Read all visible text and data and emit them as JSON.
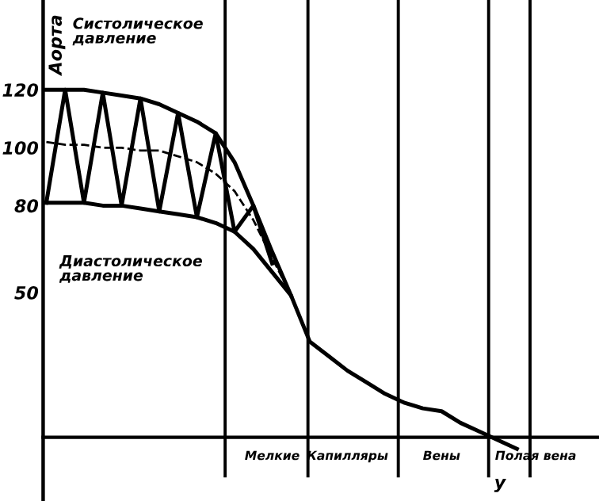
{
  "chart_data": {
    "type": "line",
    "annotations": [
      "Аорта",
      "Систолическое давление",
      "Диастолическое давление",
      "у"
    ],
    "categories": [
      null,
      null,
      null,
      null,
      null,
      null,
      null,
      null,
      null,
      null,
      null,
      null,
      "Мелкие",
      null,
      null,
      null,
      "Капилляры",
      null,
      null,
      null,
      null,
      "Вены",
      null,
      null,
      null,
      null,
      "Полая вена"
    ],
    "ylim": [
      -22,
      151
    ],
    "yticks": [
      50,
      80,
      100,
      120
    ],
    "legend": false,
    "marker": "none",
    "series": [
      {
        "color": "#000000",
        "values": [
          120,
          120,
          120,
          119,
          118,
          117,
          115,
          112,
          109,
          105,
          95,
          80,
          64,
          49,
          null,
          null,
          null,
          null,
          null,
          null,
          null,
          null,
          null,
          null,
          null,
          null,
          null
        ]
      },
      {
        "color": "#000000",
        "values": [
          81,
          81,
          81,
          80,
          80,
          79,
          78,
          77,
          76,
          74,
          71,
          65,
          57,
          49,
          33,
          28,
          23,
          19,
          15,
          12,
          10,
          9,
          5,
          2,
          -1,
          -4,
          null
        ]
      },
      {
        "color": "#000000",
        "line_style": "dashed",
        "values": [
          102,
          101,
          101,
          100,
          100,
          99,
          99,
          97,
          95,
          91,
          85,
          75,
          62,
          49,
          null,
          null,
          null,
          null,
          null,
          null,
          null,
          null,
          null,
          null,
          null,
          null,
          null
        ]
      },
      {
        "color": "#000000",
        "values": [
          81,
          120,
          81,
          119,
          80,
          117,
          78,
          112,
          76,
          105,
          71,
          80,
          60,
          null,
          null,
          null,
          null,
          null,
          null,
          null,
          null,
          null,
          null,
          null,
          null,
          null,
          null
        ]
      }
    ]
  }
}
